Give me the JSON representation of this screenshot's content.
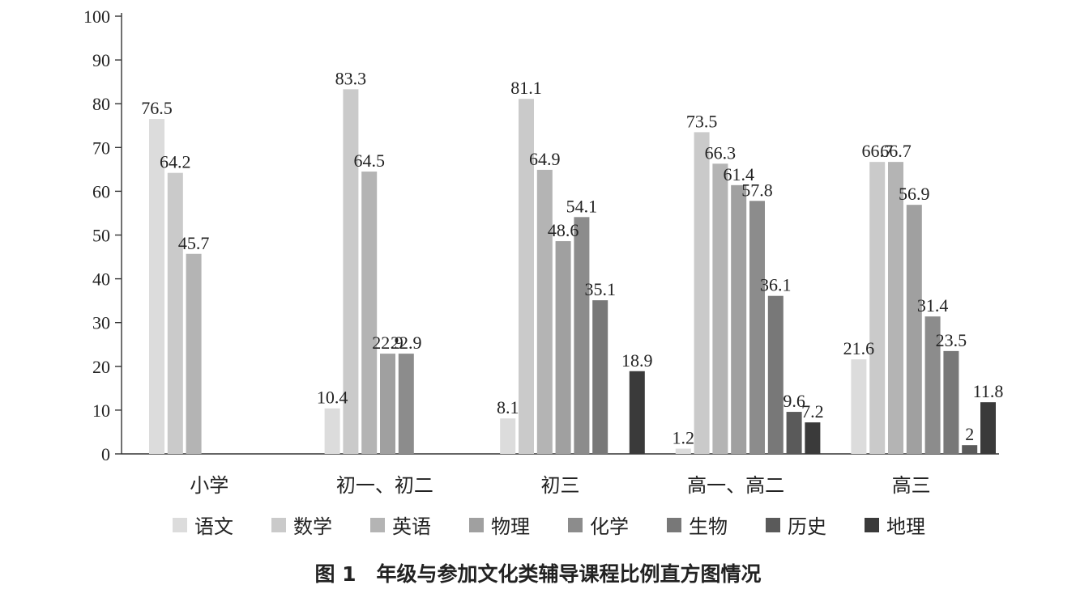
{
  "caption": "图 1　年级与参加文化类辅导课程比例直方图情况",
  "chart_data": {
    "type": "bar",
    "categories": [
      "小学",
      "初一、初二",
      "初三",
      "高一、高二",
      "高三"
    ],
    "series": [
      {
        "name": "语文",
        "color": "#dcdcdc",
        "values": [
          76.5,
          10.4,
          8.1,
          1.2,
          21.6
        ]
      },
      {
        "name": "数学",
        "color": "#cacaca",
        "values": [
          64.2,
          83.3,
          81.1,
          73.5,
          66.7
        ]
      },
      {
        "name": "英语",
        "color": "#b4b4b4",
        "values": [
          45.7,
          64.5,
          64.9,
          66.3,
          66.7
        ]
      },
      {
        "name": "物理",
        "color": "#a0a0a0",
        "values": [
          null,
          22.9,
          48.6,
          61.4,
          56.9
        ]
      },
      {
        "name": "化学",
        "color": "#8c8c8c",
        "values": [
          null,
          22.9,
          54.1,
          57.8,
          31.4
        ]
      },
      {
        "name": "生物",
        "color": "#787878",
        "values": [
          null,
          null,
          35.1,
          36.1,
          23.5
        ]
      },
      {
        "name": "历史",
        "color": "#5a5a5a",
        "values": [
          null,
          null,
          null,
          9.6,
          2
        ]
      },
      {
        "name": "地理",
        "color": "#3a3a3a",
        "values": [
          null,
          null,
          18.9,
          7.2,
          11.8
        ]
      }
    ],
    "ylim": [
      0,
      100
    ],
    "yticks": [
      0,
      10,
      20,
      30,
      40,
      50,
      60,
      70,
      80,
      90,
      100
    ],
    "legend_position": "bottom",
    "grid": false
  }
}
